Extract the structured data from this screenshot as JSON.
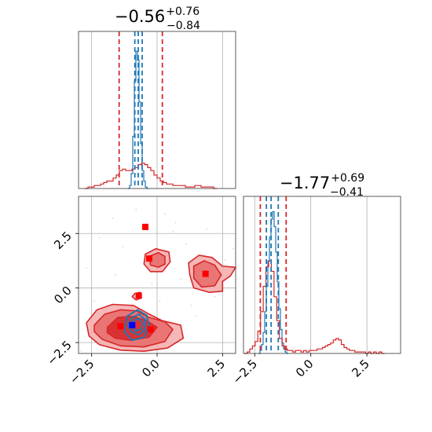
{
  "figure": {
    "type": "corner-plot"
  },
  "chart_data": [
    {
      "type": "histogram",
      "panel": "top-left marginal",
      "title": {
        "median": "−0.56",
        "plus": "+0.76",
        "minus": "−0.84"
      },
      "xlim": [
        -3.0,
        3.0
      ],
      "grid": true,
      "series": [
        {
          "color": "#1f77b4",
          "bin_width": 0.06,
          "bins": [
            [
              -1.08,
              0.0
            ],
            [
              -1.02,
              0.02
            ],
            [
              -0.96,
              0.1
            ],
            [
              -0.9,
              0.35
            ],
            [
              -0.84,
              0.72
            ],
            [
              -0.78,
              0.92
            ],
            [
              -0.72,
              0.86
            ],
            [
              -0.66,
              0.58
            ],
            [
              -0.6,
              0.3
            ],
            [
              -0.54,
              0.12
            ],
            [
              -0.48,
              0.05
            ],
            [
              -0.42,
              0.01
            ],
            [
              -0.36,
              0.0
            ]
          ],
          "quantile_lines": [
            -0.85,
            -0.72,
            -0.57
          ]
        },
        {
          "color": "#d62728",
          "bin_width": 0.12,
          "bins": [
            [
              -2.7,
              0.0
            ],
            [
              -2.58,
              0.01
            ],
            [
              -2.46,
              0.01
            ],
            [
              -2.34,
              0.02
            ],
            [
              -2.22,
              0.02
            ],
            [
              -2.1,
              0.03
            ],
            [
              -1.98,
              0.04
            ],
            [
              -1.86,
              0.05
            ],
            [
              -1.74,
              0.05
            ],
            [
              -1.62,
              0.07
            ],
            [
              -1.5,
              0.09
            ],
            [
              -1.38,
              0.12
            ],
            [
              -1.26,
              0.13
            ],
            [
              -1.14,
              0.12
            ],
            [
              -1.02,
              0.12
            ],
            [
              -0.9,
              0.13
            ],
            [
              -0.78,
              0.14
            ],
            [
              -0.66,
              0.16
            ],
            [
              -0.54,
              0.17
            ],
            [
              -0.42,
              0.16
            ],
            [
              -0.3,
              0.14
            ],
            [
              -0.18,
              0.12
            ],
            [
              -0.06,
              0.09
            ],
            [
              0.06,
              0.07
            ],
            [
              0.18,
              0.05
            ],
            [
              0.3,
              0.04
            ],
            [
              0.42,
              0.03
            ],
            [
              0.54,
              0.03
            ],
            [
              0.66,
              0.02
            ],
            [
              0.78,
              0.02
            ],
            [
              0.9,
              0.02
            ],
            [
              1.02,
              0.02
            ],
            [
              1.14,
              0.01
            ],
            [
              1.26,
              0.01
            ],
            [
              1.38,
              0.01
            ],
            [
              1.5,
              0.02
            ],
            [
              1.62,
              0.02
            ],
            [
              1.74,
              0.01
            ],
            [
              1.86,
              0.01
            ],
            [
              1.98,
              0.01
            ],
            [
              2.1,
              0.01
            ],
            [
              2.22,
              0.0
            ]
          ],
          "quantile_lines": [
            -1.45,
            0.2
          ]
        }
      ]
    },
    {
      "type": "histogram",
      "panel": "bottom-right marginal",
      "title": {
        "median": "−1.77",
        "plus": "+0.69",
        "minus": "−0.41"
      },
      "xlim": [
        -3.0,
        4.0
      ],
      "xticks": [
        -2.5,
        0.0,
        2.5
      ],
      "xtick_labels": [
        "−2.5",
        "0.0",
        "2.5"
      ],
      "grid": true,
      "series": [
        {
          "color": "#1f77b4",
          "bin_width": 0.07,
          "bins": [
            [
              -2.3,
              0.0
            ],
            [
              -2.23,
              0.02
            ],
            [
              -2.16,
              0.06
            ],
            [
              -2.09,
              0.14
            ],
            [
              -2.02,
              0.28
            ],
            [
              -1.95,
              0.45
            ],
            [
              -1.88,
              0.62
            ],
            [
              -1.81,
              0.78
            ],
            [
              -1.74,
              0.9
            ],
            [
              -1.67,
              0.95
            ],
            [
              -1.6,
              0.85
            ],
            [
              -1.53,
              0.68
            ],
            [
              -1.46,
              0.48
            ],
            [
              -1.39,
              0.3
            ],
            [
              -1.32,
              0.16
            ],
            [
              -1.25,
              0.07
            ],
            [
              -1.18,
              0.03
            ],
            [
              -1.11,
              0.01
            ],
            [
              -1.04,
              0.0
            ]
          ],
          "quantile_lines": [
            -1.98,
            -1.77,
            -1.45
          ]
        },
        {
          "color": "#d62728",
          "bin_width": 0.12,
          "bins": [
            [
              -2.9,
              0.0
            ],
            [
              -2.78,
              0.01
            ],
            [
              -2.66,
              0.03
            ],
            [
              -2.54,
              0.05
            ],
            [
              -2.42,
              0.08
            ],
            [
              -2.3,
              0.15
            ],
            [
              -2.18,
              0.28
            ],
            [
              -2.06,
              0.45
            ],
            [
              -1.94,
              0.58
            ],
            [
              -1.82,
              0.62
            ],
            [
              -1.7,
              0.55
            ],
            [
              -1.58,
              0.38
            ],
            [
              -1.46,
              0.22
            ],
            [
              -1.34,
              0.1
            ],
            [
              -1.22,
              0.05
            ],
            [
              -1.1,
              0.03
            ],
            [
              -0.98,
              0.02
            ],
            [
              -0.86,
              0.02
            ],
            [
              -0.74,
              0.01
            ],
            [
              -0.62,
              0.02
            ],
            [
              -0.5,
              0.02
            ],
            [
              -0.38,
              0.01
            ],
            [
              -0.26,
              0.02
            ],
            [
              -0.14,
              0.01
            ],
            [
              -0.02,
              0.02
            ],
            [
              0.1,
              0.02
            ],
            [
              0.22,
              0.02
            ],
            [
              0.34,
              0.03
            ],
            [
              0.46,
              0.03
            ],
            [
              0.58,
              0.04
            ],
            [
              0.7,
              0.05
            ],
            [
              0.82,
              0.06
            ],
            [
              0.94,
              0.07
            ],
            [
              1.06,
              0.09
            ],
            [
              1.18,
              0.1
            ],
            [
              1.3,
              0.09
            ],
            [
              1.42,
              0.06
            ],
            [
              1.54,
              0.04
            ],
            [
              1.66,
              0.03
            ],
            [
              1.78,
              0.02
            ],
            [
              1.9,
              0.02
            ],
            [
              2.02,
              0.01
            ],
            [
              2.14,
              0.01
            ],
            [
              2.26,
              0.01
            ],
            [
              2.38,
              0.01
            ],
            [
              2.5,
              0.0
            ],
            [
              2.62,
              0.01
            ],
            [
              2.74,
              0.0
            ],
            [
              2.86,
              0.01
            ],
            [
              2.98,
              0.0
            ],
            [
              3.1,
              0.01
            ],
            [
              3.22,
              0.0
            ]
          ],
          "quantile_lines": [
            -2.25,
            -1.1
          ]
        }
      ]
    },
    {
      "type": "contour",
      "panel": "bottom-left joint",
      "xlim": [
        -3.0,
        3.0
      ],
      "ylim": [
        -3.0,
        4.2
      ],
      "xticks": [
        -2.5,
        0.0,
        2.5
      ],
      "xtick_labels": [
        "−2.5",
        "0.0",
        "2.5"
      ],
      "yticks": [
        -2.5,
        0.0,
        2.5
      ],
      "ytick_labels": [
        "−2.5",
        "0.0",
        "2.5"
      ],
      "grid": true,
      "red_contours": [
        {
          "level": "outer",
          "points": [
            [
              -2.7,
              -1.6
            ],
            [
              -2.3,
              -1.0
            ],
            [
              -1.7,
              -0.75
            ],
            [
              -0.9,
              -0.8
            ],
            [
              -0.3,
              -1.2
            ],
            [
              0.2,
              -1.5
            ],
            [
              0.9,
              -1.7
            ],
            [
              1.0,
              -2.3
            ],
            [
              0.4,
              -2.75
            ],
            [
              -0.5,
              -2.9
            ],
            [
              -1.4,
              -2.85
            ],
            [
              -2.2,
              -2.6
            ],
            [
              -2.6,
              -2.2
            ]
          ]
        },
        {
          "level": "middle",
          "points": [
            [
              -2.4,
              -1.7
            ],
            [
              -2.0,
              -1.2
            ],
            [
              -1.4,
              -1.0
            ],
            [
              -0.8,
              -1.05
            ],
            [
              -0.3,
              -1.35
            ],
            [
              0.3,
              -1.55
            ],
            [
              0.6,
              -1.9
            ],
            [
              0.3,
              -2.45
            ],
            [
              -0.5,
              -2.7
            ],
            [
              -1.4,
              -2.65
            ],
            [
              -2.1,
              -2.35
            ],
            [
              -2.4,
              -2.0
            ]
          ]
        },
        {
          "level": "inner",
          "points": [
            [
              -1.9,
              -1.8
            ],
            [
              -1.5,
              -1.35
            ],
            [
              -0.9,
              -1.3
            ],
            [
              -0.4,
              -1.5
            ],
            [
              0.0,
              -1.8
            ],
            [
              -0.3,
              -2.25
            ],
            [
              -1.0,
              -2.4
            ],
            [
              -1.6,
              -2.3
            ],
            [
              -1.9,
              -2.05
            ]
          ]
        },
        {
          "level": "outer",
          "points": [
            [
              -0.45,
              1.55
            ],
            [
              -0.05,
              1.8
            ],
            [
              0.45,
              1.65
            ],
            [
              0.5,
              1.2
            ],
            [
              0.2,
              0.75
            ],
            [
              -0.25,
              0.75
            ],
            [
              -0.5,
              1.1
            ]
          ]
        },
        {
          "level": "middle",
          "points": [
            [
              -0.3,
              1.45
            ],
            [
              0.05,
              1.62
            ],
            [
              0.3,
              1.45
            ],
            [
              0.3,
              1.1
            ],
            [
              0.05,
              0.95
            ],
            [
              -0.25,
              1.05
            ]
          ]
        },
        {
          "level": "outer",
          "points": [
            [
              1.2,
              1.15
            ],
            [
              1.6,
              1.5
            ],
            [
              2.1,
              1.4
            ],
            [
              2.5,
              1.0
            ],
            [
              3.0,
              0.95
            ],
            [
              2.8,
              0.55
            ],
            [
              2.5,
              0.3
            ],
            [
              2.5,
              -0.15
            ],
            [
              2.0,
              -0.2
            ],
            [
              1.4,
              0.0
            ],
            [
              1.25,
              0.6
            ]
          ]
        },
        {
          "level": "middle",
          "points": [
            [
              1.4,
              1.0
            ],
            [
              1.8,
              1.25
            ],
            [
              2.2,
              1.05
            ],
            [
              2.45,
              0.6
            ],
            [
              2.2,
              0.1
            ],
            [
              1.7,
              0.05
            ],
            [
              1.4,
              0.45
            ]
          ]
        },
        {
          "level": "outer",
          "points": [
            [
              -0.85,
              -0.25
            ],
            [
              -0.65,
              -0.2
            ],
            [
              -0.6,
              -0.45
            ],
            [
              -0.8,
              -0.55
            ],
            [
              -0.95,
              -0.4
            ]
          ]
        }
      ],
      "blue_contours": [
        {
          "level": "outer",
          "points": [
            [
              -1.15,
              -1.3
            ],
            [
              -0.75,
              -1.0
            ],
            [
              -0.4,
              -1.25
            ],
            [
              -0.3,
              -1.75
            ],
            [
              -0.5,
              -2.25
            ],
            [
              -0.95,
              -2.4
            ],
            [
              -1.25,
              -2.0
            ]
          ]
        },
        {
          "level": "middle",
          "points": [
            [
              -1.0,
              -1.4
            ],
            [
              -0.7,
              -1.2
            ],
            [
              -0.45,
              -1.45
            ],
            [
              -0.45,
              -1.9
            ],
            [
              -0.7,
              -2.15
            ],
            [
              -1.0,
              -2.0
            ],
            [
              -1.1,
              -1.7
            ]
          ]
        },
        {
          "level": "inner",
          "points": [
            [
              -0.9,
              -1.5
            ],
            [
              -0.7,
              -1.4
            ],
            [
              -0.55,
              -1.6
            ],
            [
              -0.6,
              -1.9
            ],
            [
              -0.85,
              -1.95
            ],
            [
              -0.95,
              -1.75
            ]
          ]
        }
      ],
      "red_markers": [
        [
          -0.45,
          2.8
        ],
        [
          -0.3,
          1.35
        ],
        [
          1.85,
          0.65
        ],
        [
          -0.7,
          -0.35
        ],
        [
          -1.4,
          -1.75
        ],
        [
          -0.25,
          -1.9
        ]
      ],
      "blue_marker": [
        -0.95,
        -1.7
      ],
      "scatter_points": [
        [
          -1.7,
          3.2
        ],
        [
          0.3,
          3.4
        ],
        [
          1.9,
          2.7
        ],
        [
          -2.2,
          2.3
        ],
        [
          0.6,
          2.6
        ],
        [
          -1.3,
          1.9
        ],
        [
          1.1,
          2.0
        ],
        [
          -2.7,
          0.9
        ],
        [
          0.9,
          0.4
        ],
        [
          2.9,
          1.8
        ],
        [
          -2.4,
          -0.6
        ],
        [
          2.6,
          1.3
        ],
        [
          1.3,
          -0.8
        ],
        [
          -0.2,
          0.2
        ],
        [
          2.2,
          -0.4
        ],
        [
          -1.6,
          0.6
        ],
        [
          0.1,
          -0.6
        ],
        [
          -2.9,
          -2.9
        ],
        [
          1.5,
          -1.3
        ],
        [
          -0.8,
          3.6
        ],
        [
          0.7,
          3.0
        ]
      ]
    }
  ]
}
